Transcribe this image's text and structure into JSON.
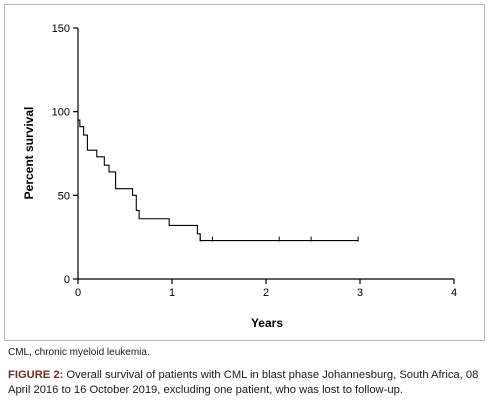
{
  "chart_data": {
    "type": "line",
    "subtype": "kaplan-meier step curve",
    "title": "",
    "xlabel": "Years",
    "ylabel": "Percent survival",
    "xlim": [
      0,
      4
    ],
    "ylim": [
      0,
      150
    ],
    "x_ticks": [
      0,
      1,
      2,
      3,
      4
    ],
    "y_ticks": [
      0,
      50,
      100,
      150
    ],
    "grid": false,
    "legend": "none",
    "steps": [
      {
        "x": 0.0,
        "y": 95
      },
      {
        "x": 0.02,
        "y": 91
      },
      {
        "x": 0.06,
        "y": 86
      },
      {
        "x": 0.1,
        "y": 77
      },
      {
        "x": 0.2,
        "y": 73
      },
      {
        "x": 0.28,
        "y": 68
      },
      {
        "x": 0.33,
        "y": 64
      },
      {
        "x": 0.4,
        "y": 54
      },
      {
        "x": 0.58,
        "y": 50
      },
      {
        "x": 0.62,
        "y": 41
      },
      {
        "x": 0.65,
        "y": 36
      },
      {
        "x": 0.97,
        "y": 32
      },
      {
        "x": 1.27,
        "y": 27
      },
      {
        "x": 1.3,
        "y": 23
      }
    ],
    "end_x": 2.98,
    "censor_marks": [
      {
        "x": 1.3,
        "y": 23
      },
      {
        "x": 1.43,
        "y": 23
      },
      {
        "x": 2.14,
        "y": 23
      },
      {
        "x": 2.48,
        "y": 23
      },
      {
        "x": 2.98,
        "y": 23
      }
    ]
  },
  "footnote": "CML, chronic myeloid leukemia.",
  "caption": {
    "label": "FIGURE 2:",
    "text": " Overall survival of patients with CML in blast phase Johannesburg, South Africa, 08 April 2016 to 16 October 2019, excluding one patient, who was lost to follow-up."
  }
}
